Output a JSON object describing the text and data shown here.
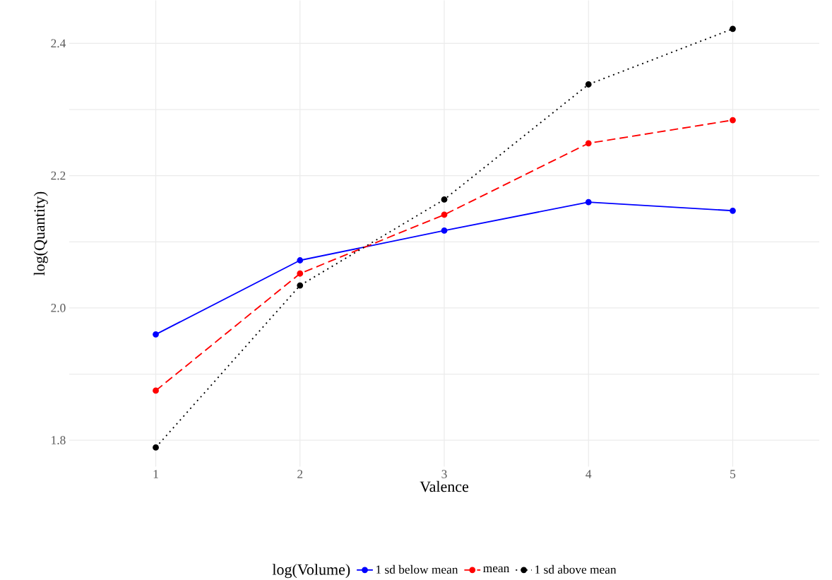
{
  "chart_data": {
    "type": "line",
    "xlabel": "Valence",
    "ylabel": "log(Quantity)",
    "legend_title": "log(Volume)",
    "x": [
      1,
      2,
      3,
      4,
      5
    ],
    "series": [
      {
        "name": "1 sd below mean",
        "color": "#0000ff",
        "line_style": "solid",
        "values": [
          1.96,
          2.072,
          2.117,
          2.16,
          2.147
        ]
      },
      {
        "name": "mean",
        "color": "#ff0000",
        "line_style": "dashed",
        "values": [
          1.875,
          2.052,
          2.141,
          2.249,
          2.284
        ]
      },
      {
        "name": "1 sd above mean",
        "color": "#000000",
        "line_style": "dotted",
        "values": [
          1.789,
          2.034,
          2.164,
          2.338,
          2.422
        ]
      }
    ],
    "marker": "circle",
    "grid": true,
    "legend": "bottom",
    "xlim": [
      0.4,
      5.6
    ],
    "ylim": [
      1.76,
      2.465
    ],
    "xticks": [
      1,
      2,
      3,
      4,
      5
    ],
    "yticks": [
      1.8,
      {
        "value": 1.9,
        "label": null
      },
      {
        "value": 2,
        "label": "2.0"
      },
      {
        "value": 2.1,
        "label": null
      },
      2.2,
      {
        "value": 2.3,
        "label": null
      },
      2.4
    ]
  }
}
